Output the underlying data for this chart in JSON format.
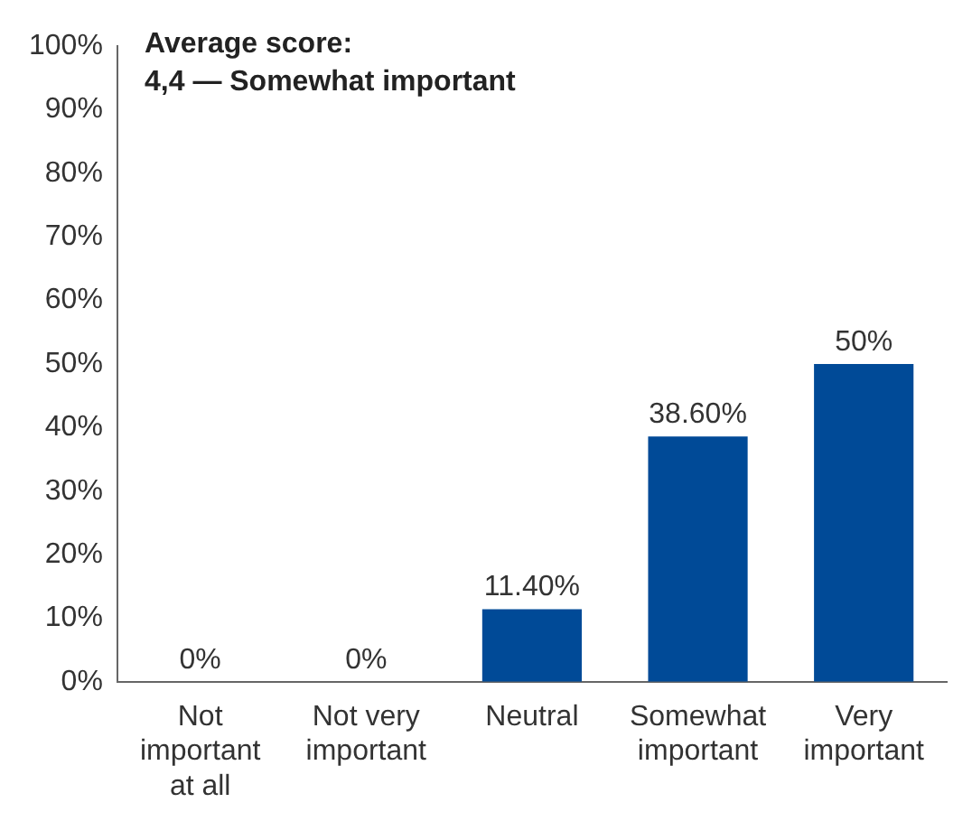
{
  "chart_data": {
    "type": "bar",
    "title": "Average score:",
    "subtitle": "4,4 — Somewhat important",
    "categories": [
      "Not important at all",
      "Not very important",
      "Neutral",
      "Somewhat important",
      "Very important"
    ],
    "values": [
      0,
      0,
      11.4,
      38.6,
      50
    ],
    "value_labels": [
      "0%",
      "0%",
      "11.40%",
      "38.60%",
      "50%"
    ],
    "color": "#004a97",
    "ylim": [
      0,
      100
    ],
    "yticks": [
      {
        "value": 0,
        "label": "0%"
      },
      {
        "value": 10,
        "label": "10%"
      },
      {
        "value": 20,
        "label": "20%"
      },
      {
        "value": 30,
        "label": "30%"
      },
      {
        "value": 40,
        "label": "40%"
      },
      {
        "value": 50,
        "label": "50%"
      },
      {
        "value": 60,
        "label": "60%"
      },
      {
        "value": 70,
        "label": "70%"
      },
      {
        "value": 80,
        "label": "80%"
      },
      {
        "value": 90,
        "label": "90%"
      },
      {
        "value": 100,
        "label": "100%"
      }
    ],
    "grid": false,
    "legend": false
  }
}
